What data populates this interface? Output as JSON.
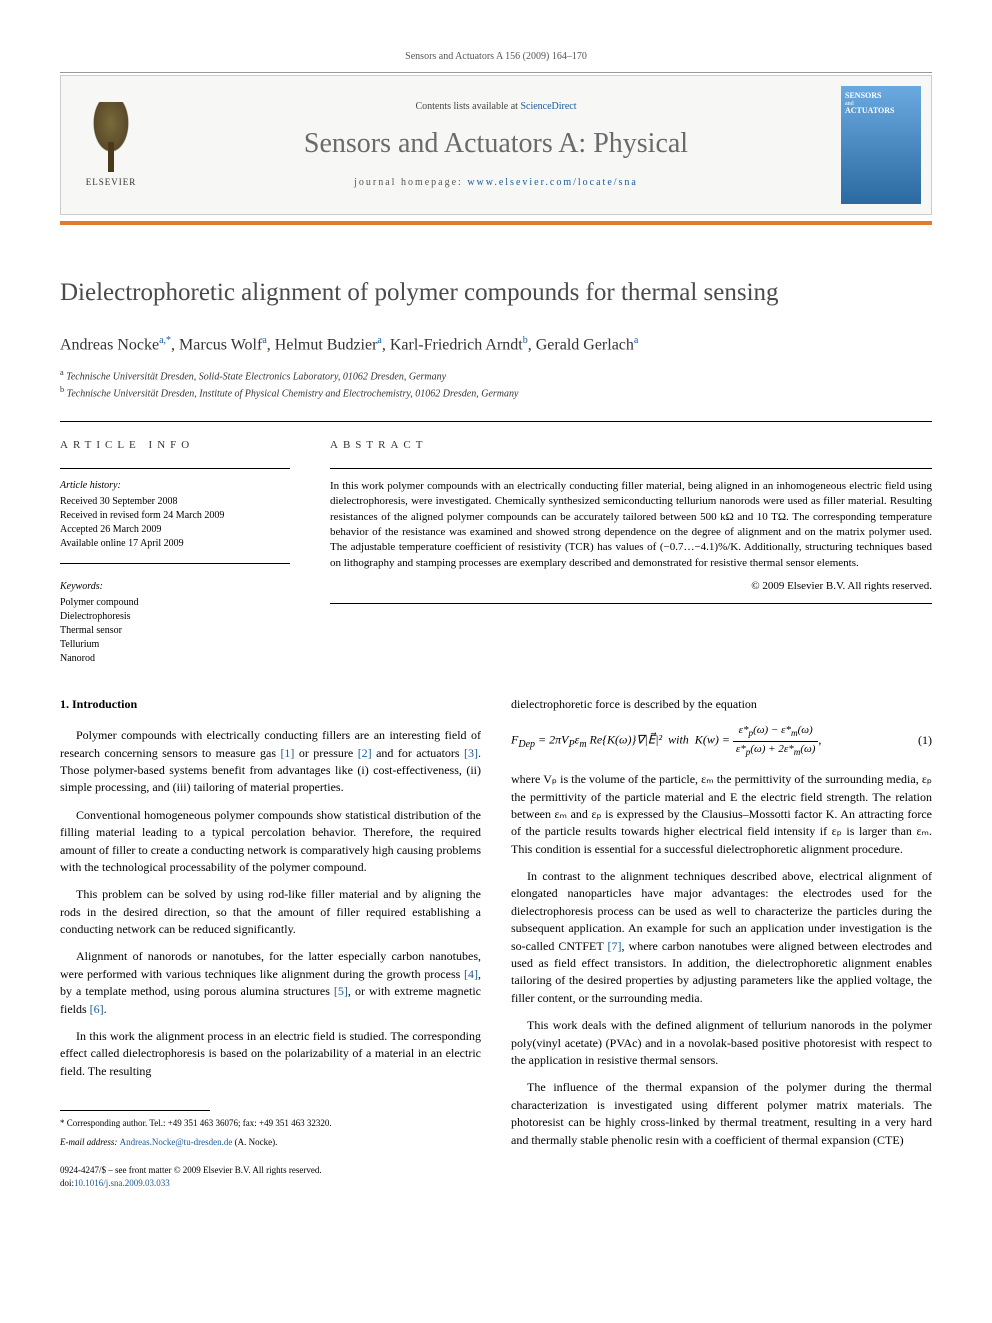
{
  "running_head": "Sensors and Actuators A 156 (2009) 164–170",
  "header": {
    "contents_prefix": "Contents lists available at ",
    "contents_link": "ScienceDirect",
    "journal": "Sensors and Actuators A: Physical",
    "homepage_prefix": "journal homepage: ",
    "homepage_link": "www.elsevier.com/locate/sna",
    "publisher": "ELSEVIER",
    "cover_line1": "SENSORS",
    "cover_line2": "ACTUATORS",
    "cover_and": "and"
  },
  "title": "Dielectrophoretic alignment of polymer compounds for thermal sensing",
  "authors_html": "Andreas Nocke<sup>a,*</sup>, Marcus Wolf<sup>a</sup>, Helmut Budzier<sup>a</sup>, Karl-Friedrich Arndt<sup>b</sup>, Gerald Gerlach<sup>a</sup>",
  "affiliations": [
    "a Technische Universität Dresden, Solid-State Electronics Laboratory, 01062 Dresden, Germany",
    "b Technische Universität Dresden, Institute of Physical Chemistry and Electrochemistry, 01062 Dresden, Germany"
  ],
  "article_info_heading": "ARTICLE INFO",
  "abstract_heading": "ABSTRACT",
  "history_label": "Article history:",
  "history": [
    "Received 30 September 2008",
    "Received in revised form 24 March 2009",
    "Accepted 26 March 2009",
    "Available online 17 April 2009"
  ],
  "keywords_label": "Keywords:",
  "keywords": [
    "Polymer compound",
    "Dielectrophoresis",
    "Thermal sensor",
    "Tellurium",
    "Nanorod"
  ],
  "abstract": "In this work polymer compounds with an electrically conducting filler material, being aligned in an inhomogeneous electric field using dielectrophoresis, were investigated. Chemically synthesized semiconducting tellurium nanorods were used as filler material. Resulting resistances of the aligned polymer compounds can be accurately tailored between 500 kΩ and 10 TΩ. The corresponding temperature behavior of the resistance was examined and showed strong dependence on the degree of alignment and on the matrix polymer used. The adjustable temperature coefficient of resistivity (TCR) has values of (−0.7…−4.1)%/K. Additionally, structuring techniques based on lithography and stamping processes are exemplary described and demonstrated for resistive thermal sensor elements.",
  "copyright": "© 2009 Elsevier B.V. All rights reserved.",
  "section1_heading": "1. Introduction",
  "left_paras": [
    "Polymer compounds with electrically conducting fillers are an interesting field of research concerning sensors to measure gas [1] or pressure [2] and for actuators [3]. Those polymer-based systems benefit from advantages like (i) cost-effectiveness, (ii) simple processing, and (iii) tailoring of material properties.",
    "Conventional homogeneous polymer compounds show statistical distribution of the filling material leading to a typical percolation behavior. Therefore, the required amount of filler to create a conducting network is comparatively high causing problems with the technological processability of the polymer compound.",
    "This problem can be solved by using rod-like filler material and by aligning the rods in the desired direction, so that the amount of filler required establishing a conducting network can be reduced significantly.",
    "Alignment of nanorods or nanotubes, for the latter especially carbon nanotubes, were performed with various techniques like alignment during the growth process [4], by a template method, using porous alumina structures [5], or with extreme magnetic fields [6].",
    "In this work the alignment process in an electric field is studied. The corresponding effect called dielectrophoresis is based on the polarizability of a material in an electric field. The resulting"
  ],
  "right_lead": "dielectrophoretic force is described by the equation",
  "equation": {
    "lhs": "F",
    "sub_lhs": "Dep",
    "eq": " = 2πV",
    "vp": "P",
    "epsm": "ε",
    "epsm_sub": "m",
    "re": " Re{K(ω)}∇|E⃗|² ",
    "with": " with ",
    "k": "K(w) = ",
    "num": "ε*ₚ(ω) − ε*ₘ(ω)",
    "den": "ε*ₚ(ω) + 2ε*ₘ(ω)",
    "comma": ",",
    "number": "(1)"
  },
  "right_paras": [
    "where Vₚ is the volume of the particle, εₘ the permittivity of the surrounding media, εₚ the permittivity of the particle material and E the electric field strength. The relation between εₘ and εₚ is expressed by the Clausius–Mossotti factor K. An attracting force of the particle results towards higher electrical field intensity if εₚ is larger than εₘ. This condition is essential for a successful dielectrophoretic alignment procedure.",
    "In contrast to the alignment techniques described above, electrical alignment of elongated nanoparticles have major advantages: the electrodes used for the dielectrophoresis process can be used as well to characterize the particles during the subsequent application. An example for such an application under investigation is the so-called CNTFET [7], where carbon nanotubes were aligned between electrodes and used as field effect transistors. In addition, the dielectrophoretic alignment enables tailoring of the desired properties by adjusting parameters like the applied voltage, the filler content, or the surrounding media.",
    "This work deals with the defined alignment of tellurium nanorods in the polymer poly(vinyl acetate) (PVAc) and in a novolak-based positive photoresist with respect to the application in resistive thermal sensors.",
    "The influence of the thermal expansion of the polymer during the thermal characterization is investigated using different polymer matrix materials. The photoresist can be highly cross-linked by thermal treatment, resulting in a very hard and thermally stable phenolic resin with a coefficient of thermal expansion (CTE)"
  ],
  "footnote_star": "* Corresponding author. Tel.: +49 351 463 36076; fax: +49 351 463 32320.",
  "footnote_email_label": "E-mail address: ",
  "footnote_email": "Andreas.Nocke@tu-dresden.de",
  "footnote_email_tail": " (A. Nocke).",
  "bottom_issn": "0924-4247/$ – see front matter © 2009 Elsevier B.V. All rights reserved.",
  "bottom_doi_label": "doi:",
  "bottom_doi": "10.1016/j.sna.2009.03.033",
  "colors": {
    "orange": "#e67a2a",
    "link": "#1a5a9a",
    "header_bg": "#f7f7f5",
    "journal_gray": "#6a6a6a"
  }
}
